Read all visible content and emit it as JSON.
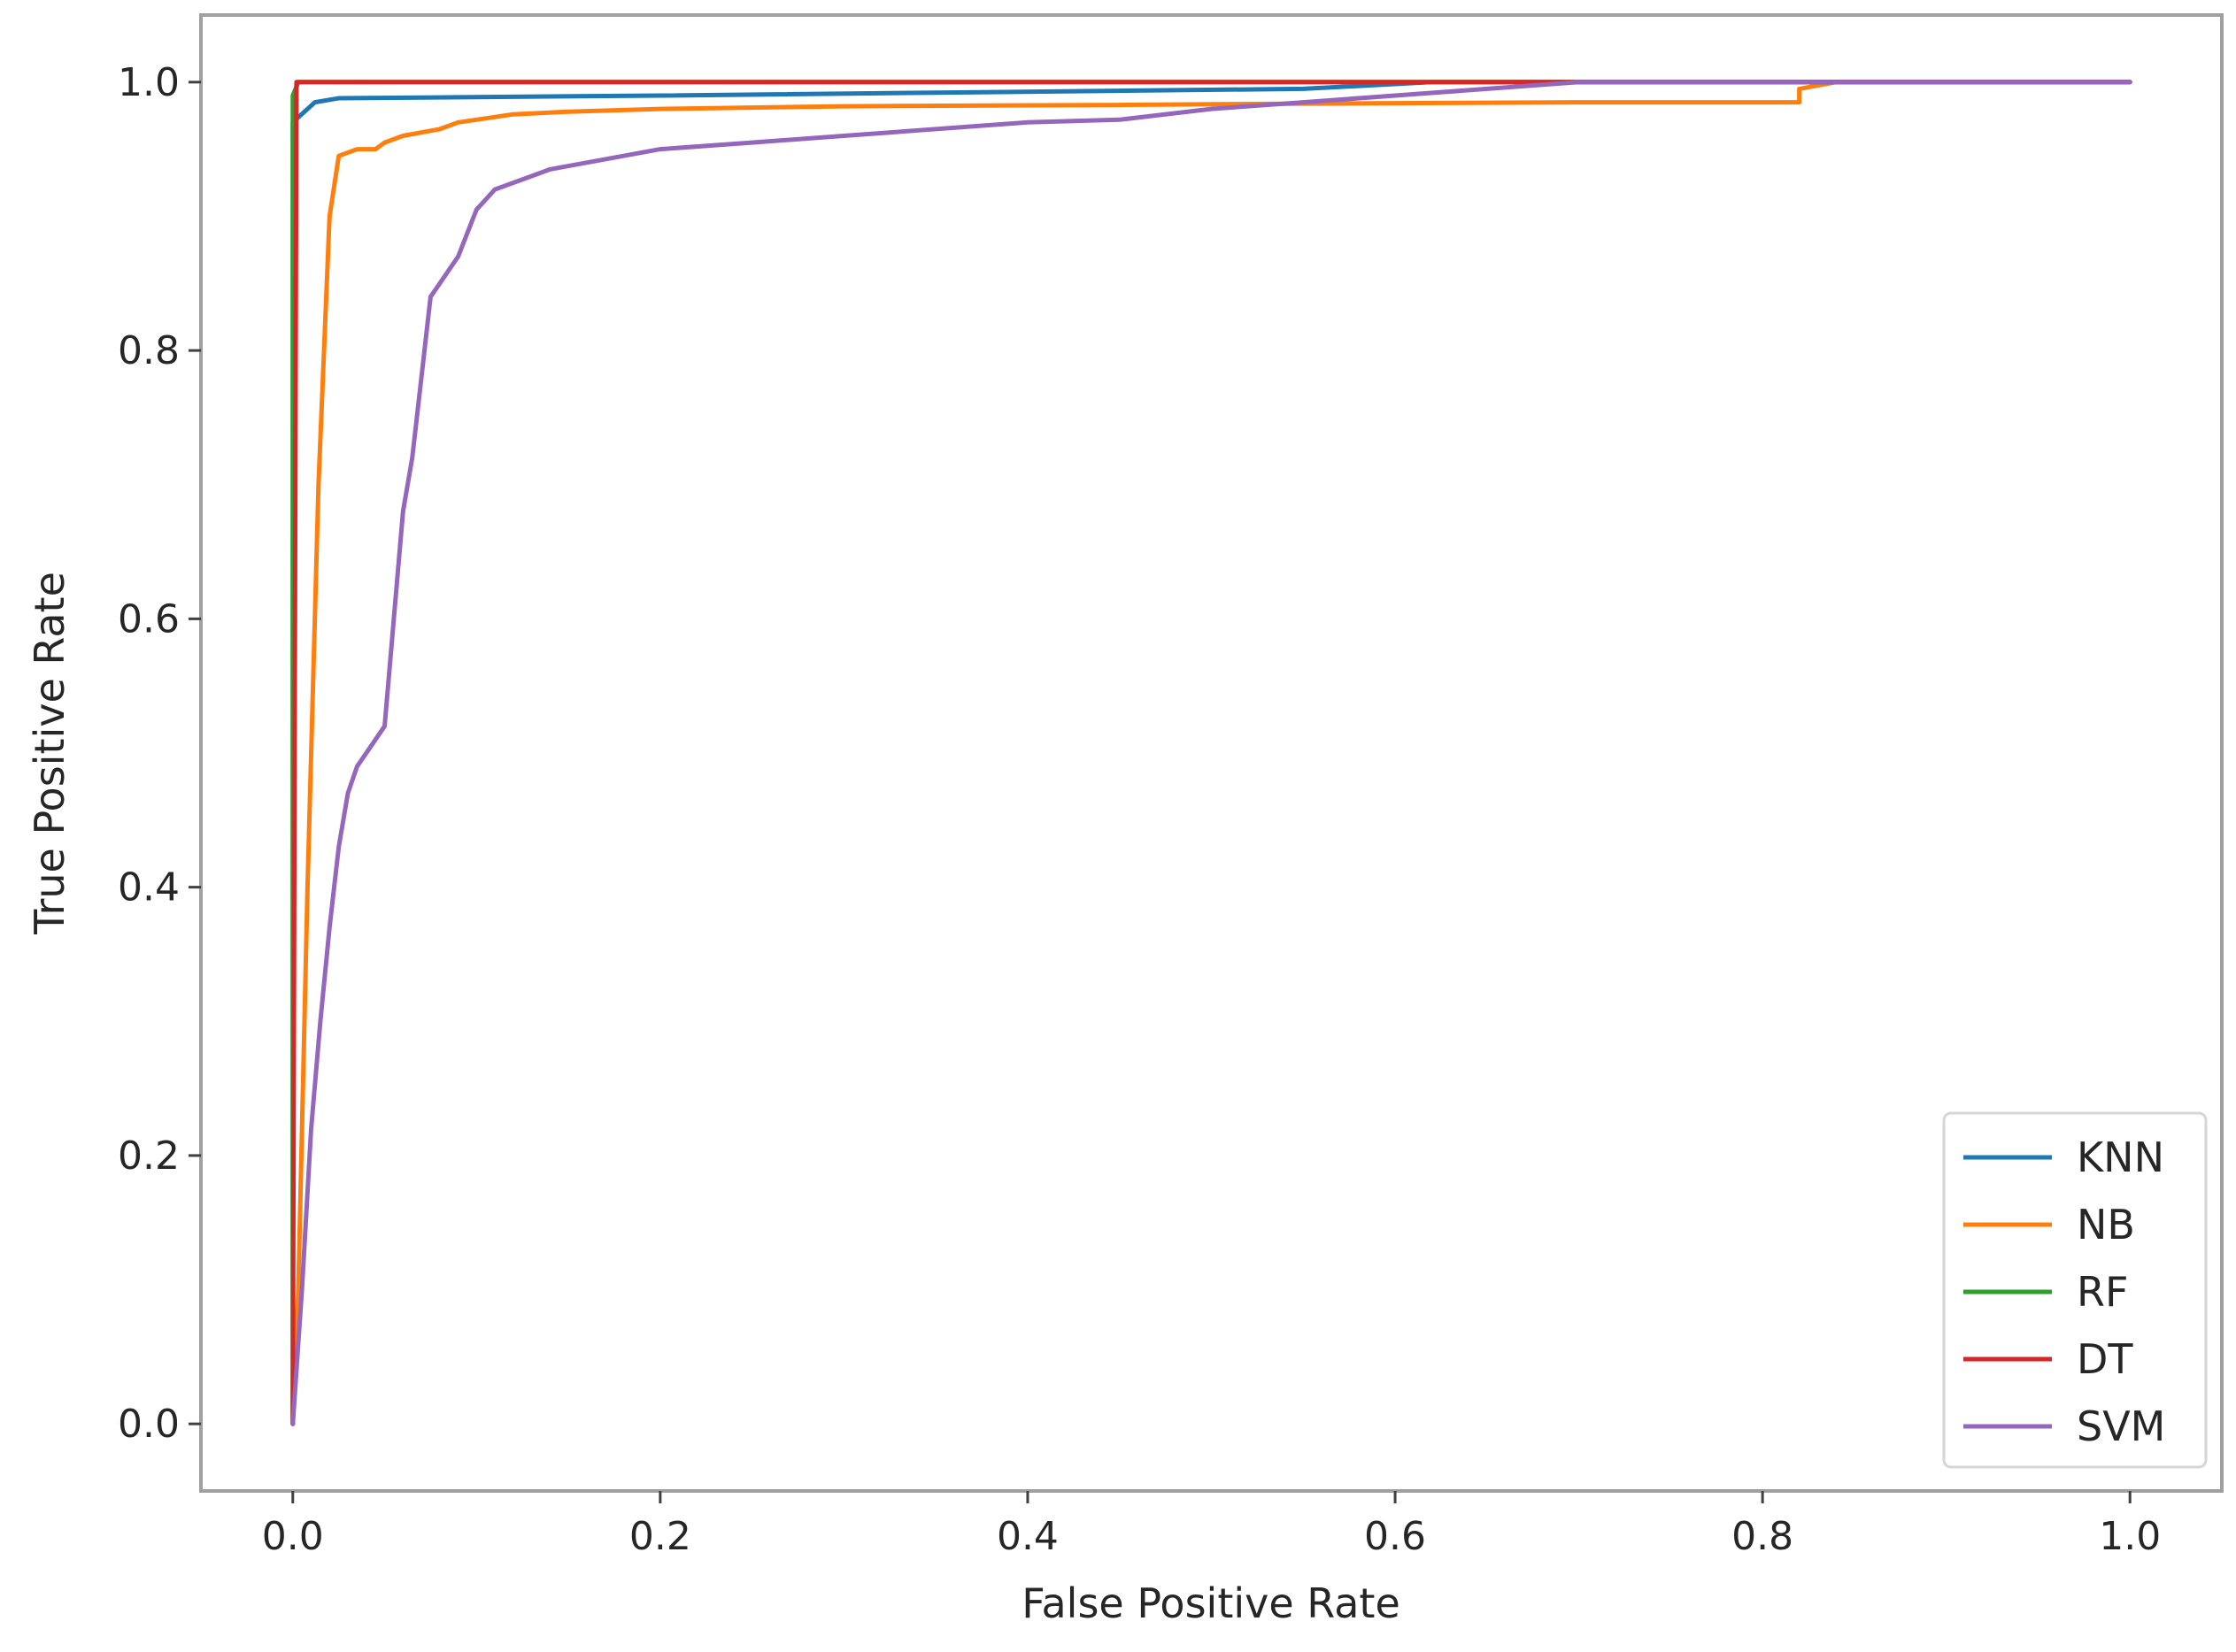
{
  "chart_data": {
    "type": "line",
    "title": "",
    "xlabel": "False Positive Rate",
    "ylabel": "True Positive Rate",
    "xlim": [
      -0.05,
      1.05
    ],
    "ylim": [
      -0.05,
      1.05
    ],
    "xticks": [
      0.0,
      0.2,
      0.4,
      0.6,
      0.8,
      1.0
    ],
    "yticks": [
      0.0,
      0.2,
      0.4,
      0.6,
      0.8,
      1.0
    ],
    "xtick_labels": [
      "0.0",
      "0.2",
      "0.4",
      "0.6",
      "0.8",
      "1.0"
    ],
    "ytick_labels": [
      "0.0",
      "0.2",
      "0.4",
      "0.6",
      "0.8",
      "1.0"
    ],
    "grid": false,
    "legend_position": "bottom-right",
    "series": [
      {
        "name": "KNN",
        "color": "#1f77b4",
        "x": [
          0.0,
          0.0,
          0.004,
          0.012,
          0.025,
          0.2,
          0.55,
          0.62,
          1.0
        ],
        "y": [
          0.0,
          0.97,
          0.975,
          0.985,
          0.988,
          0.99,
          0.995,
          1.0,
          1.0
        ]
      },
      {
        "name": "NB",
        "color": "#ff7f0e",
        "x": [
          0.0,
          0.003,
          0.008,
          0.014,
          0.02,
          0.025,
          0.035,
          0.045,
          0.05,
          0.06,
          0.08,
          0.09,
          0.1,
          0.12,
          0.15,
          0.2,
          0.3,
          0.45,
          0.55,
          0.7,
          0.82,
          0.82,
          0.84,
          1.0
        ],
        "y": [
          0.0,
          0.1,
          0.4,
          0.7,
          0.9,
          0.945,
          0.95,
          0.95,
          0.955,
          0.96,
          0.965,
          0.97,
          0.972,
          0.976,
          0.978,
          0.98,
          0.982,
          0.983,
          0.984,
          0.985,
          0.985,
          0.995,
          1.0,
          1.0
        ]
      },
      {
        "name": "RF",
        "color": "#2ca02c",
        "x": [
          0.0,
          0.0,
          0.003,
          1.0
        ],
        "y": [
          0.0,
          0.99,
          1.0,
          1.0
        ]
      },
      {
        "name": "DT",
        "color": "#d62728",
        "x": [
          0.0,
          0.002,
          1.0
        ],
        "y": [
          0.0,
          1.0,
          1.0
        ]
      },
      {
        "name": "SVM",
        "color": "#9467bd",
        "x": [
          0.0,
          0.005,
          0.01,
          0.015,
          0.02,
          0.025,
          0.03,
          0.035,
          0.045,
          0.05,
          0.055,
          0.06,
          0.065,
          0.07,
          0.075,
          0.08,
          0.09,
          0.1,
          0.11,
          0.13,
          0.14,
          0.16,
          0.2,
          0.25,
          0.3,
          0.4,
          0.45,
          0.5,
          0.55,
          0.6,
          0.65,
          0.7,
          0.8,
          1.0
        ],
        "y": [
          0.0,
          0.1,
          0.22,
          0.3,
          0.37,
          0.43,
          0.47,
          0.49,
          0.51,
          0.52,
          0.6,
          0.68,
          0.72,
          0.78,
          0.84,
          0.85,
          0.87,
          0.905,
          0.92,
          0.93,
          0.935,
          0.94,
          0.95,
          0.955,
          0.96,
          0.97,
          0.972,
          0.98,
          0.985,
          0.99,
          0.995,
          1.0,
          1.0,
          1.0
        ]
      }
    ]
  }
}
